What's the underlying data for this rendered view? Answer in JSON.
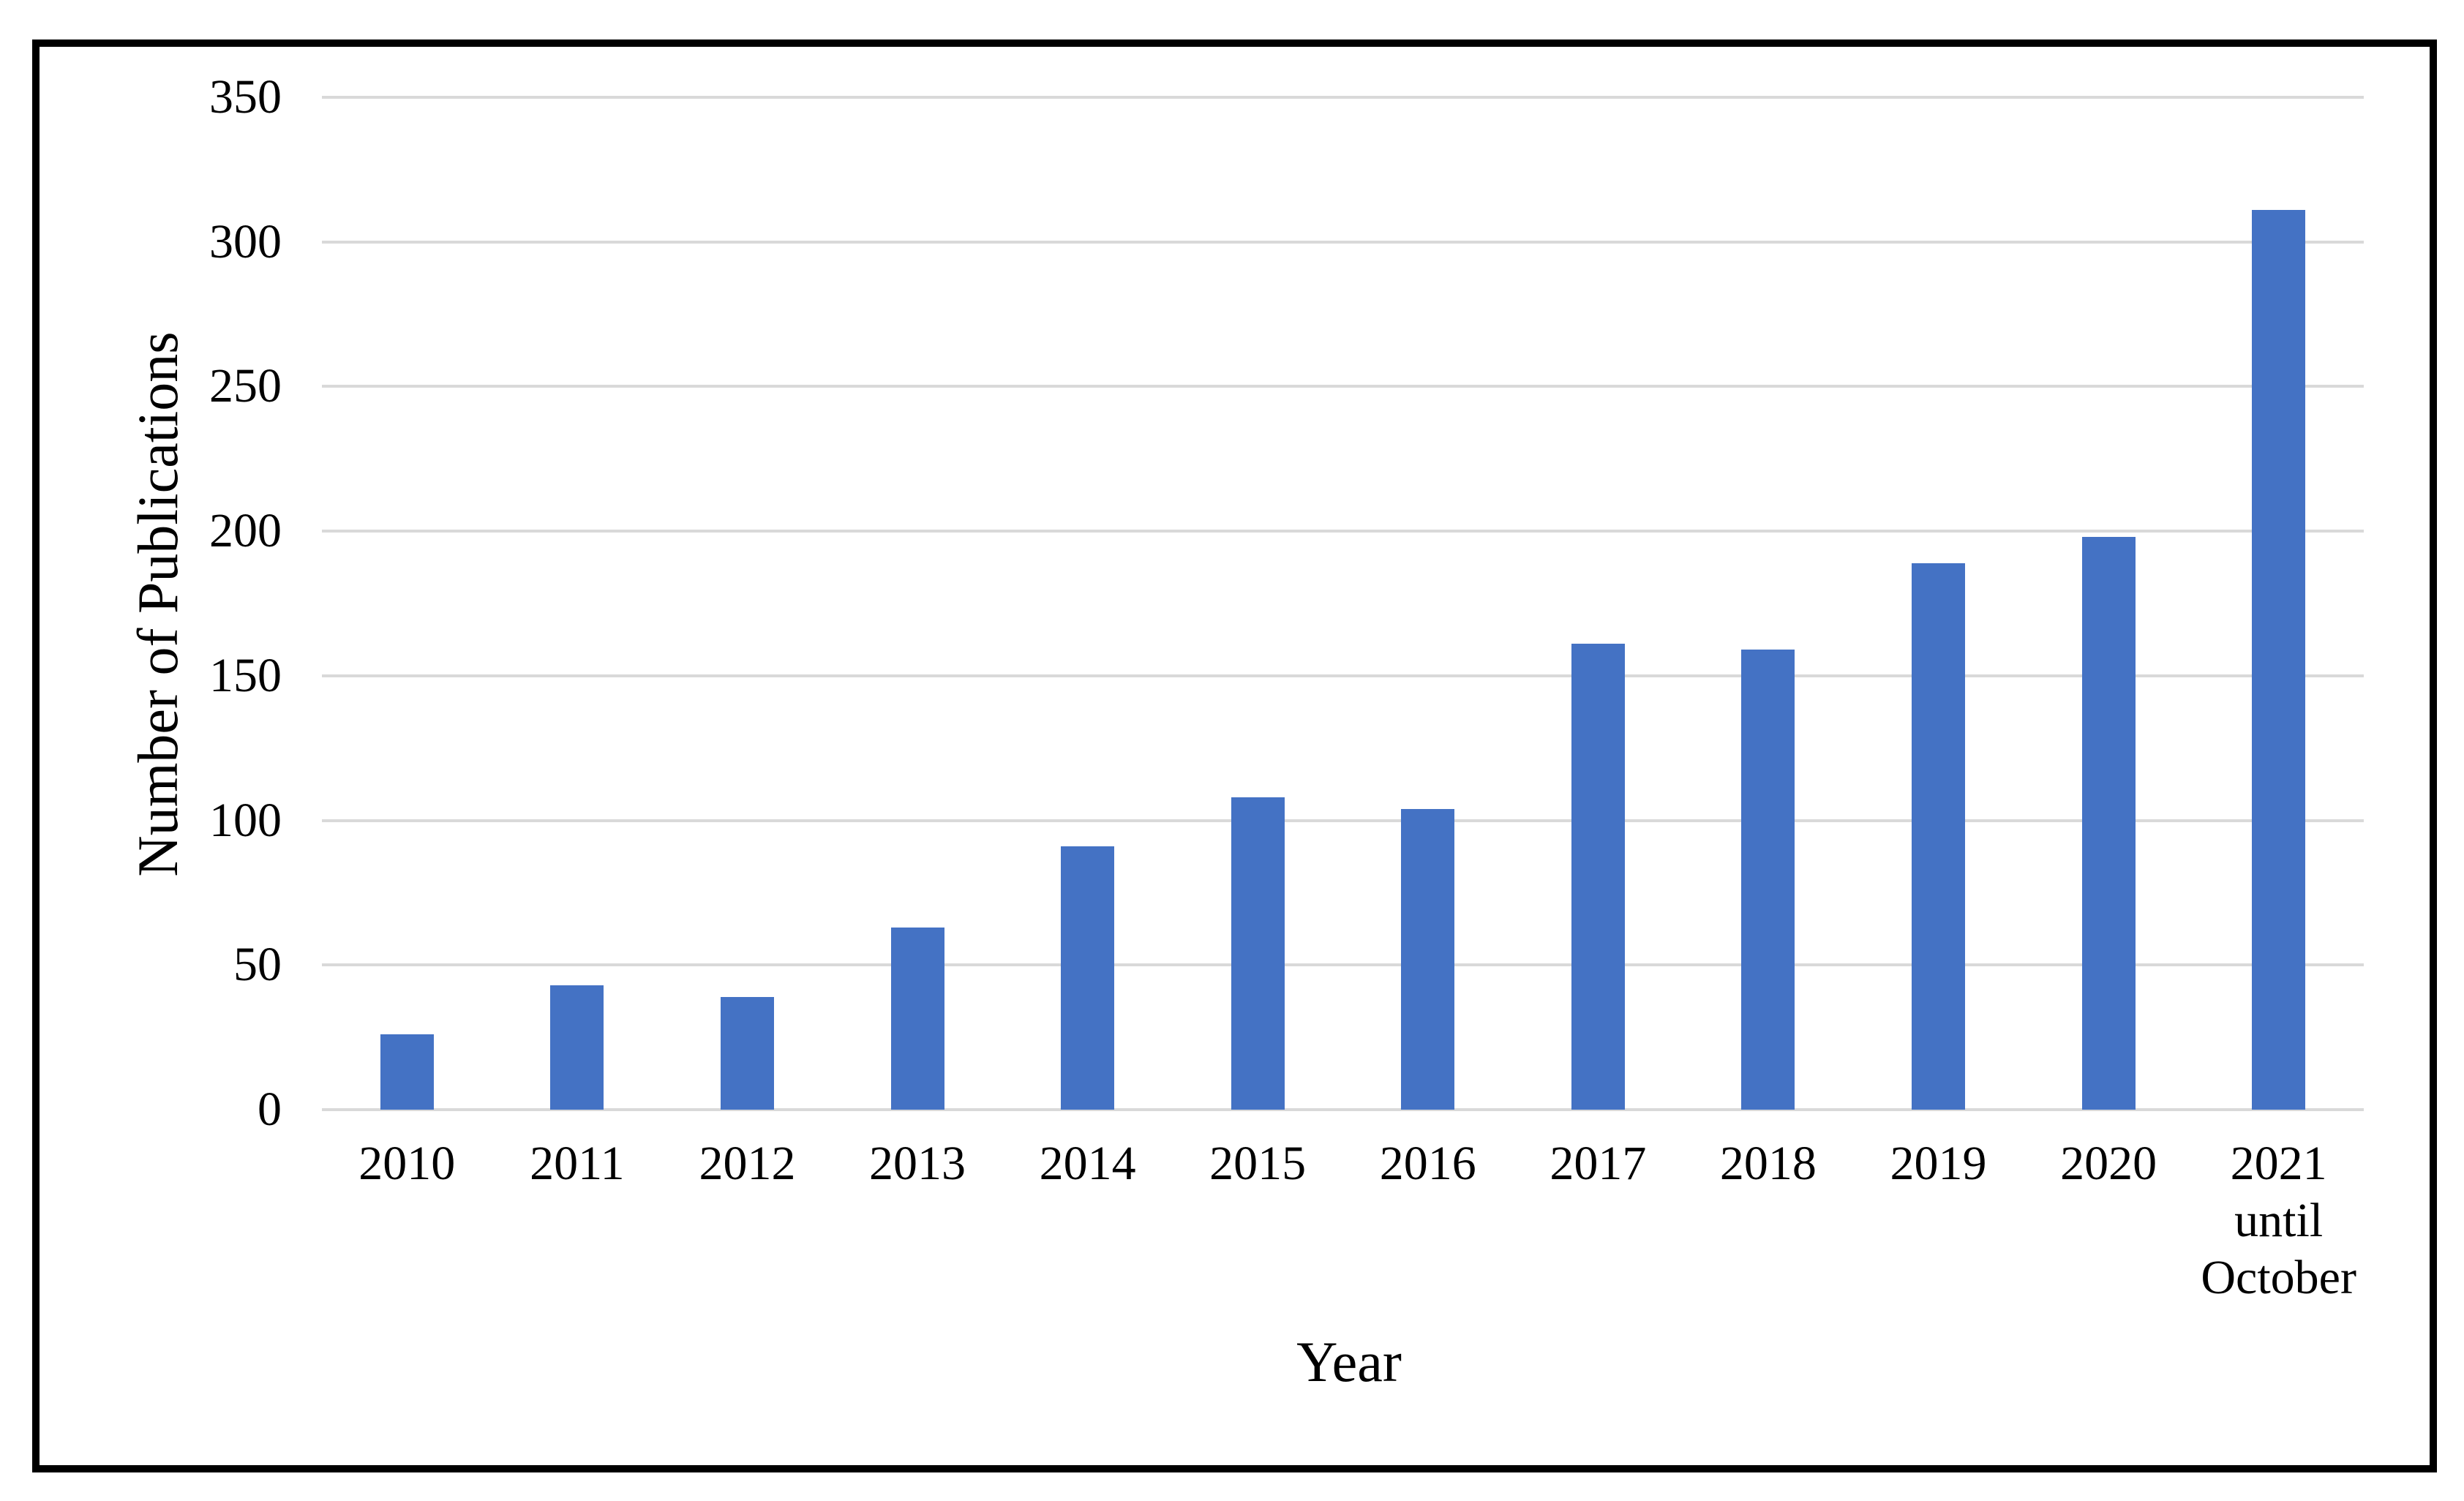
{
  "chart_data": {
    "type": "bar",
    "title": "",
    "xlabel": "Year",
    "ylabel": "Number of Publications",
    "categories": [
      "2010",
      "2011",
      "2012",
      "2013",
      "2014",
      "2015",
      "2016",
      "2017",
      "2018",
      "2019",
      "2020",
      "2021\nuntil\nOctober"
    ],
    "values": [
      26,
      43,
      39,
      63,
      91,
      108,
      104,
      161,
      159,
      189,
      198,
      311
    ],
    "yticks": [
      350,
      300,
      250,
      200,
      150,
      100,
      50,
      0
    ],
    "ylim": [
      0,
      350
    ],
    "grid": true,
    "legend_position": "none",
    "bar_color": "#4472C4",
    "gridline_color": "#D9D9D9",
    "text_color": "#000000",
    "border_color": "#000000"
  }
}
